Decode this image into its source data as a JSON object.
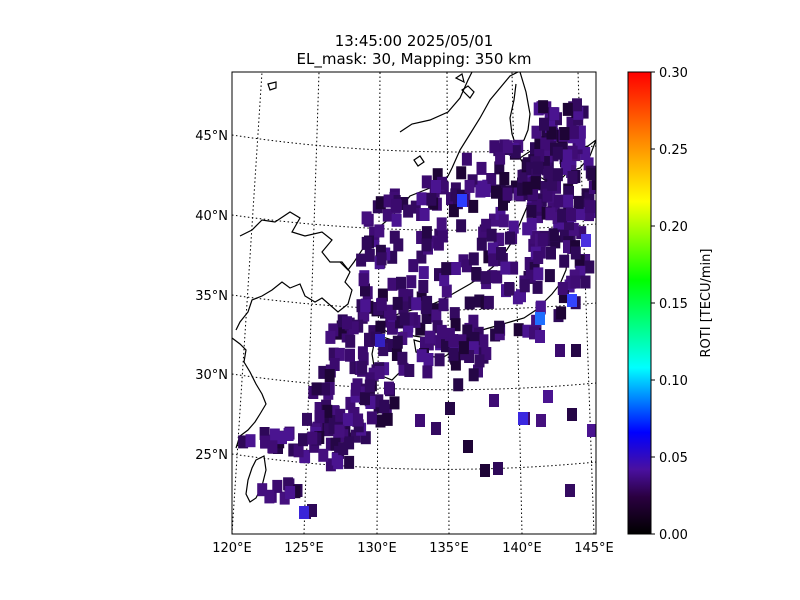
{
  "title": {
    "line1": "13:45:00 2025/05/01",
    "line2": "EL_mask: 30, Mapping: 350 km"
  },
  "map": {
    "lon_range": [
      120,
      145
    ],
    "lat_range": [
      20,
      49
    ],
    "lon_labels": [
      "120°E",
      "125°E",
      "130°E",
      "135°E",
      "140°E",
      "145°E"
    ],
    "lat_labels": [
      "25°N",
      "30°N",
      "35°N",
      "40°N",
      "45°N"
    ],
    "graticule": "dotted",
    "coastlines": true
  },
  "colorbar": {
    "label": "ROTI [TECU/min]",
    "min": 0.0,
    "max": 0.3,
    "ticks": [
      "0.00",
      "0.05",
      "0.10",
      "0.15",
      "0.20",
      "0.25",
      "0.30"
    ],
    "colormap": "black-purple-blue-cyan-green-yellow-red",
    "stops": [
      "#000000",
      "#2a0040",
      "#4a10a0",
      "#0000ff",
      "#00ffff",
      "#00ff00",
      "#ffff00",
      "#ff0000"
    ]
  },
  "roti_cells": {
    "typical_value": 0.03,
    "dominant_color": "#3b0a6e"
  }
}
